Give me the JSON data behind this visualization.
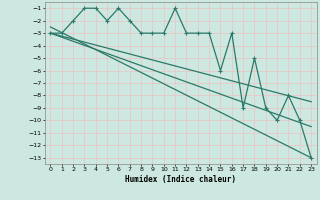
{
  "xlabel": "Humidex (Indice chaleur)",
  "xlim": [
    -0.5,
    23.5
  ],
  "ylim": [
    -13.5,
    -0.5
  ],
  "yticks": [
    -1,
    -2,
    -3,
    -4,
    -5,
    -6,
    -7,
    -8,
    -9,
    -10,
    -11,
    -12,
    -13
  ],
  "xticks": [
    0,
    1,
    2,
    3,
    4,
    5,
    6,
    7,
    8,
    9,
    10,
    11,
    12,
    13,
    14,
    15,
    16,
    17,
    18,
    19,
    20,
    21,
    22,
    23
  ],
  "bg_color": "#cce8e0",
  "grid_color": "#e8c8c8",
  "line_color": "#2a7a6a",
  "line_width": 0.9,
  "main_x": [
    0,
    1,
    2,
    3,
    4,
    5,
    6,
    7,
    8,
    9,
    10,
    11,
    12,
    13,
    14,
    15,
    16,
    17,
    18,
    19,
    20,
    21,
    22,
    23
  ],
  "main_y": [
    -3,
    -3,
    -2,
    -1,
    -1,
    -2,
    -1,
    -2,
    -3,
    -3,
    -3,
    -1,
    -3,
    -3,
    -3,
    -6,
    -3,
    -9,
    -5,
    -9,
    -10,
    -8,
    -10,
    -13
  ],
  "trend1_x": [
    0,
    23
  ],
  "trend1_y": [
    -3,
    -8.5
  ],
  "trend2_x": [
    0,
    23
  ],
  "trend2_y": [
    -3,
    -10.5
  ],
  "trend3_x": [
    0,
    23
  ],
  "trend3_y": [
    -2.5,
    -13
  ]
}
